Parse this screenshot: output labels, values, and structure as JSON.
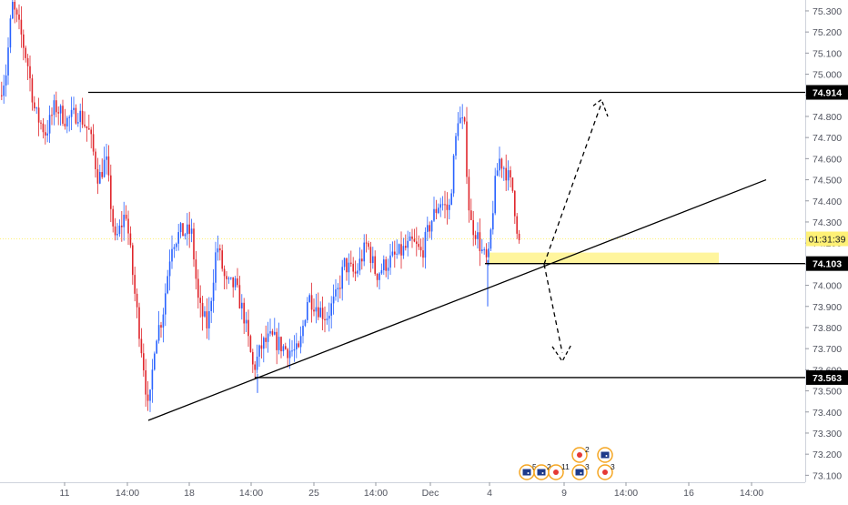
{
  "chart_data": {
    "type": "candlestick",
    "symbol_unit": "price",
    "y_axis": {
      "ticks": [
        "73.100",
        "73.200",
        "73.300",
        "73.400",
        "73.500",
        "73.600",
        "73.700",
        "73.800",
        "73.900",
        "74.000",
        "74.100",
        "74.200",
        "74.300",
        "74.400",
        "74.500",
        "74.600",
        "74.700",
        "74.800",
        "74.900",
        "75.000",
        "75.100",
        "75.200",
        "75.300"
      ],
      "range": [
        73.08,
        75.33
      ],
      "side": "right"
    },
    "x_axis": {
      "ticks": [
        "11",
        "14:00",
        "18",
        "14:00",
        "25",
        "14:00",
        "Dec",
        "4",
        "9",
        "14:00",
        "16",
        "14:00"
      ]
    },
    "up_color": "#2962ff",
    "down_color": "#e0262c",
    "price_lines": [
      {
        "label": "74.914",
        "value": 74.914
      },
      {
        "label": "74.103",
        "value": 74.103
      },
      {
        "label": "73.563",
        "value": 73.563
      }
    ],
    "current_price": {
      "label": "01:31:39",
      "value": 74.22,
      "color": "#fff176"
    },
    "support_zone": {
      "from": 74.1,
      "to": 74.155,
      "color": "#fff59d"
    },
    "trendline": {
      "from_price": 73.36,
      "to_price": 74.5
    },
    "projections": [
      {
        "direction": "up",
        "target": 74.85
      },
      {
        "direction": "down",
        "target": 73.68
      }
    ],
    "candles_ohlc_sample": [
      [
        74.8,
        75.3,
        74.6,
        75.2
      ],
      [
        75.2,
        75.33,
        75.0,
        75.05
      ],
      [
        75.05,
        75.1,
        74.7,
        74.8
      ],
      [
        74.8,
        74.95,
        74.55,
        74.6
      ],
      [
        74.6,
        74.92,
        74.5,
        74.85
      ],
      [
        74.85,
        74.9,
        74.6,
        74.7
      ],
      [
        74.7,
        74.78,
        74.3,
        74.4
      ],
      [
        74.4,
        74.45,
        73.95,
        74.05
      ],
      [
        74.05,
        74.1,
        73.36,
        73.45
      ],
      [
        73.45,
        73.95,
        73.4,
        73.85
      ],
      [
        73.85,
        74.3,
        73.8,
        74.25
      ],
      [
        74.25,
        74.3,
        73.6,
        73.7
      ],
      [
        73.7,
        74.05,
        73.55,
        73.95
      ],
      [
        73.95,
        74.1,
        73.65,
        73.7
      ],
      [
        73.7,
        73.75,
        73.6,
        73.65
      ],
      [
        73.65,
        74.0,
        73.62,
        73.95
      ],
      [
        73.95,
        74.2,
        73.85,
        74.15
      ],
      [
        74.15,
        74.25,
        73.95,
        74.1
      ],
      [
        74.1,
        74.3,
        74.0,
        74.28
      ],
      [
        74.28,
        74.85,
        74.25,
        74.8
      ],
      [
        74.8,
        74.85,
        74.1,
        74.15
      ],
      [
        74.15,
        74.5,
        73.9,
        74.4
      ],
      [
        74.4,
        74.65,
        74.3,
        74.55
      ],
      [
        74.55,
        74.6,
        74.16,
        74.2
      ]
    ]
  },
  "events": {
    "badges": [
      {
        "label": "5",
        "kind": "flag"
      },
      {
        "label": "2",
        "kind": "flag"
      },
      {
        "label": "11",
        "kind": "dot"
      },
      {
        "label": "3",
        "kind": "flag"
      },
      {
        "label": "2",
        "kind": "dot"
      },
      {
        "label": "3",
        "kind": "dot"
      },
      {
        "label": "",
        "kind": "flag"
      }
    ]
  }
}
